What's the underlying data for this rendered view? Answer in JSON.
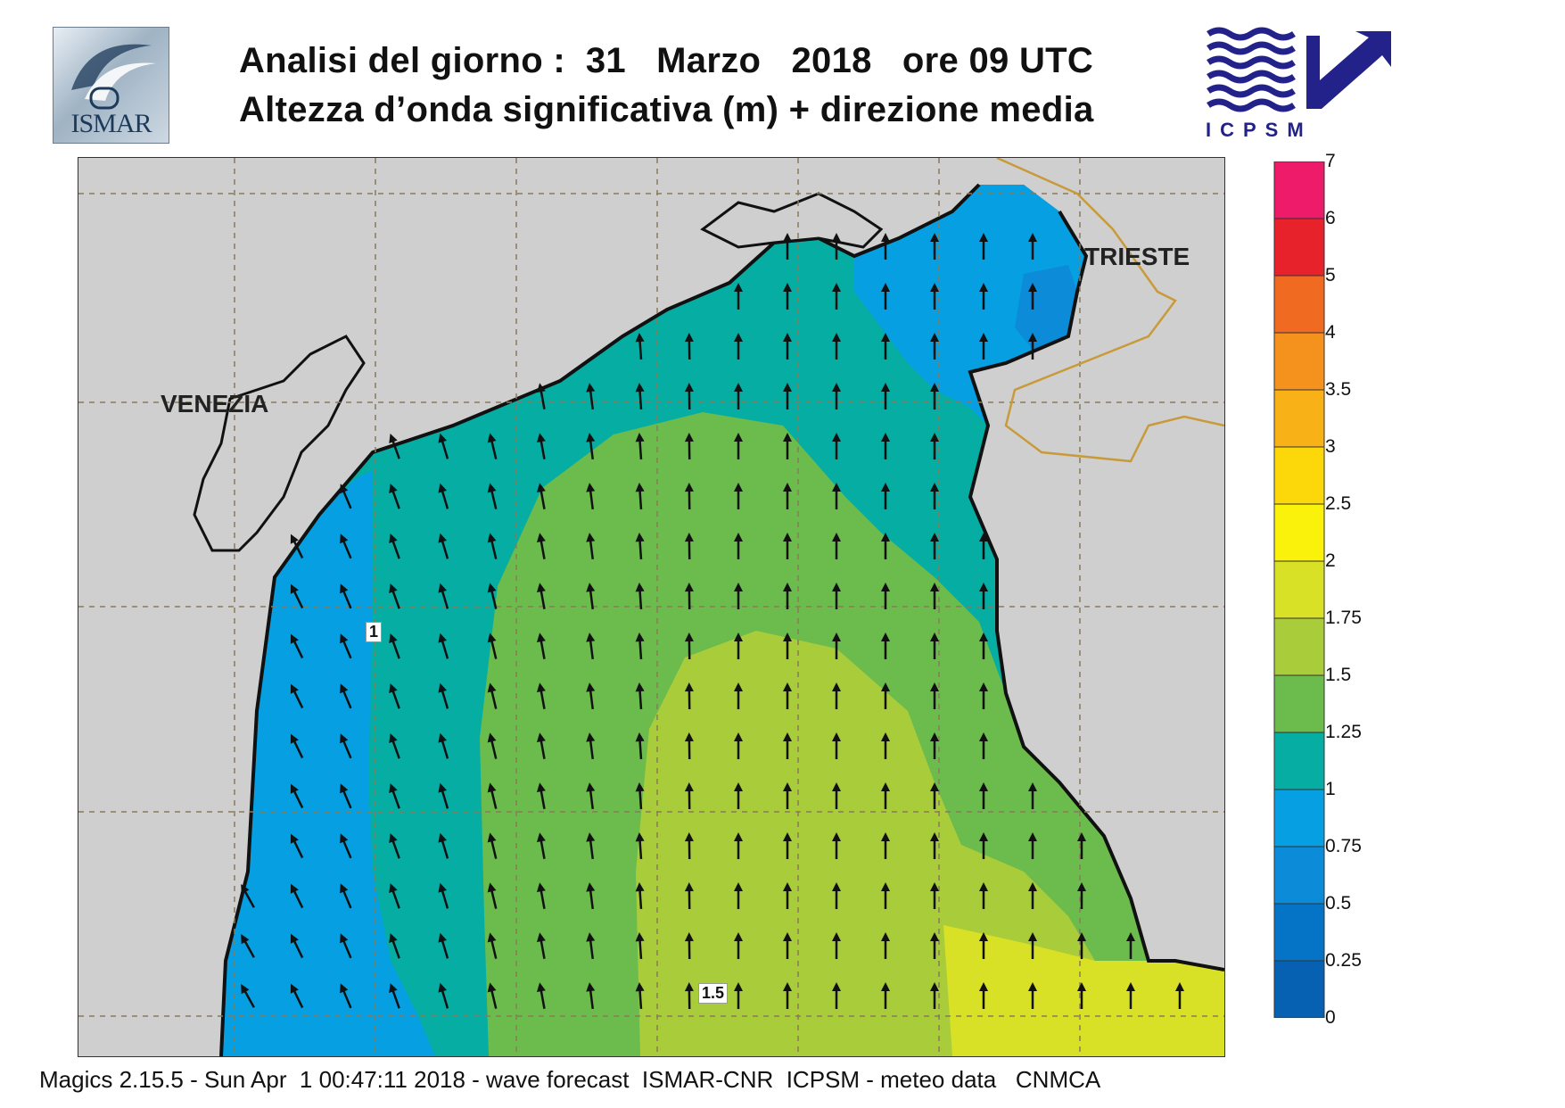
{
  "header": {
    "title_line1": "Analisi del giorno :  31   Marzo   2018   ore 09 UTC",
    "title_line2": "Altezza d’onda significativa (m) + direzione media",
    "left_logo_text": "ISMAR",
    "right_logo_text": "ICPSM"
  },
  "map": {
    "cities": [
      {
        "name": "VENEZIA"
      },
      {
        "name": "TRIESTE"
      }
    ],
    "contour_labels": [
      "1",
      "1.5"
    ],
    "arrow_direction": "north-northwest",
    "land_color": "#cfcfcf",
    "coast_color": "#111111",
    "border_color": "#c89a3a"
  },
  "legend": {
    "title": "",
    "levels": [
      {
        "label": "7",
        "color": null
      },
      {
        "label": "6",
        "color": "#ee1a6a"
      },
      {
        "label": "5",
        "color": "#e8222b"
      },
      {
        "label": "4",
        "color": "#f06a22"
      },
      {
        "label": "3.5",
        "color": "#f5921e"
      },
      {
        "label": "3",
        "color": "#f8b117"
      },
      {
        "label": "2.5",
        "color": "#fcd80a"
      },
      {
        "label": "2",
        "color": "#fbf20b"
      },
      {
        "label": "1.75",
        "color": "#d8e126"
      },
      {
        "label": "1.5",
        "color": "#a9cc3b"
      },
      {
        "label": "1.25",
        "color": "#6bbb4d"
      },
      {
        "label": "1",
        "color": "#05ada3"
      },
      {
        "label": "0.75",
        "color": "#069fe2"
      },
      {
        "label": "0.5",
        "color": "#0b8bd8"
      },
      {
        "label": "0.25",
        "color": "#0574c6"
      },
      {
        "label": "0",
        "color": "#0661b2"
      }
    ]
  },
  "footer": {
    "text": "Magics 2.15.5 - Sun Apr  1 00:47:11 2018 - wave forecast  ISMAR-CNR  ICPSM - meteo data   CNMCA"
  }
}
